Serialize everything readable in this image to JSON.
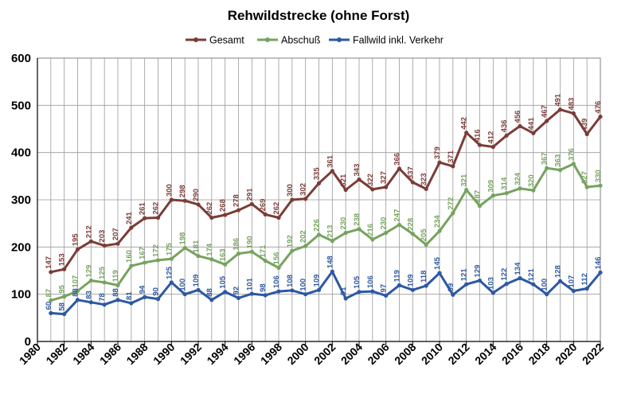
{
  "chart_data": {
    "type": "line",
    "title": "Rehwildstrecke (ohne Forst)",
    "xlabel": "",
    "ylabel": "",
    "xlim": [
      1980,
      2022
    ],
    "ylim": [
      0,
      600
    ],
    "grid": true,
    "legend_position": "top",
    "x_ticks": [
      "1980",
      "1982",
      "1984",
      "1986",
      "1988",
      "1990",
      "1992",
      "1994",
      "1996",
      "1998",
      "2000",
      "2002",
      "2004",
      "2006",
      "2008",
      "2010",
      "2012",
      "2014",
      "2016",
      "2018",
      "2020",
      "2022"
    ],
    "y_ticks": [
      "0",
      "100",
      "200",
      "300",
      "400",
      "500",
      "600"
    ],
    "x": [
      1981,
      1982,
      1983,
      1984,
      1985,
      1986,
      1987,
      1988,
      1989,
      1990,
      1991,
      1992,
      1993,
      1994,
      1995,
      1996,
      1997,
      1998,
      1999,
      2000,
      2001,
      2002,
      2003,
      2004,
      2005,
      2006,
      2007,
      2008,
      2009,
      2010,
      2011,
      2012,
      2013,
      2014,
      2015,
      2016,
      2017,
      2018,
      2019,
      2020,
      2021,
      2022
    ],
    "series": [
      {
        "name": "Gesamt",
        "color": "#7b3c36",
        "values": [
          147,
          153,
          195,
          212,
          203,
          207,
          241,
          261,
          262,
          300,
          298,
          290,
          262,
          268,
          278,
          291,
          269,
          262,
          300,
          302,
          335,
          361,
          321,
          343,
          322,
          327,
          366,
          337,
          323,
          379,
          371,
          442,
          416,
          412,
          436,
          456,
          441,
          467,
          491,
          483,
          439,
          476
        ]
      },
      {
        "name": "Abschuß",
        "color": "#76a35e",
        "values": [
          87,
          95,
          107,
          129,
          125,
          119,
          160,
          167,
          172,
          175,
          198,
          181,
          174,
          163,
          186,
          190,
          171,
          156,
          192,
          202,
          226,
          213,
          230,
          238,
          216,
          230,
          247,
          228,
          205,
          234,
          272,
          321,
          287,
          309,
          314,
          324,
          320,
          367,
          363,
          376,
          327,
          330
        ]
      },
      {
        "name": "Fallwild inkl. Verkehr",
        "color": "#2d58a2",
        "values": [
          60,
          58,
          88,
          83,
          78,
          88,
          81,
          94,
          90,
          125,
          100,
          109,
          88,
          105,
          92,
          101,
          98,
          106,
          108,
          100,
          109,
          148,
          91,
          105,
          106,
          97,
          119,
          109,
          118,
          145,
          99,
          121,
          129,
          103,
          122,
          134,
          121,
          100,
          128,
          107,
          112,
          146
        ]
      }
    ]
  }
}
